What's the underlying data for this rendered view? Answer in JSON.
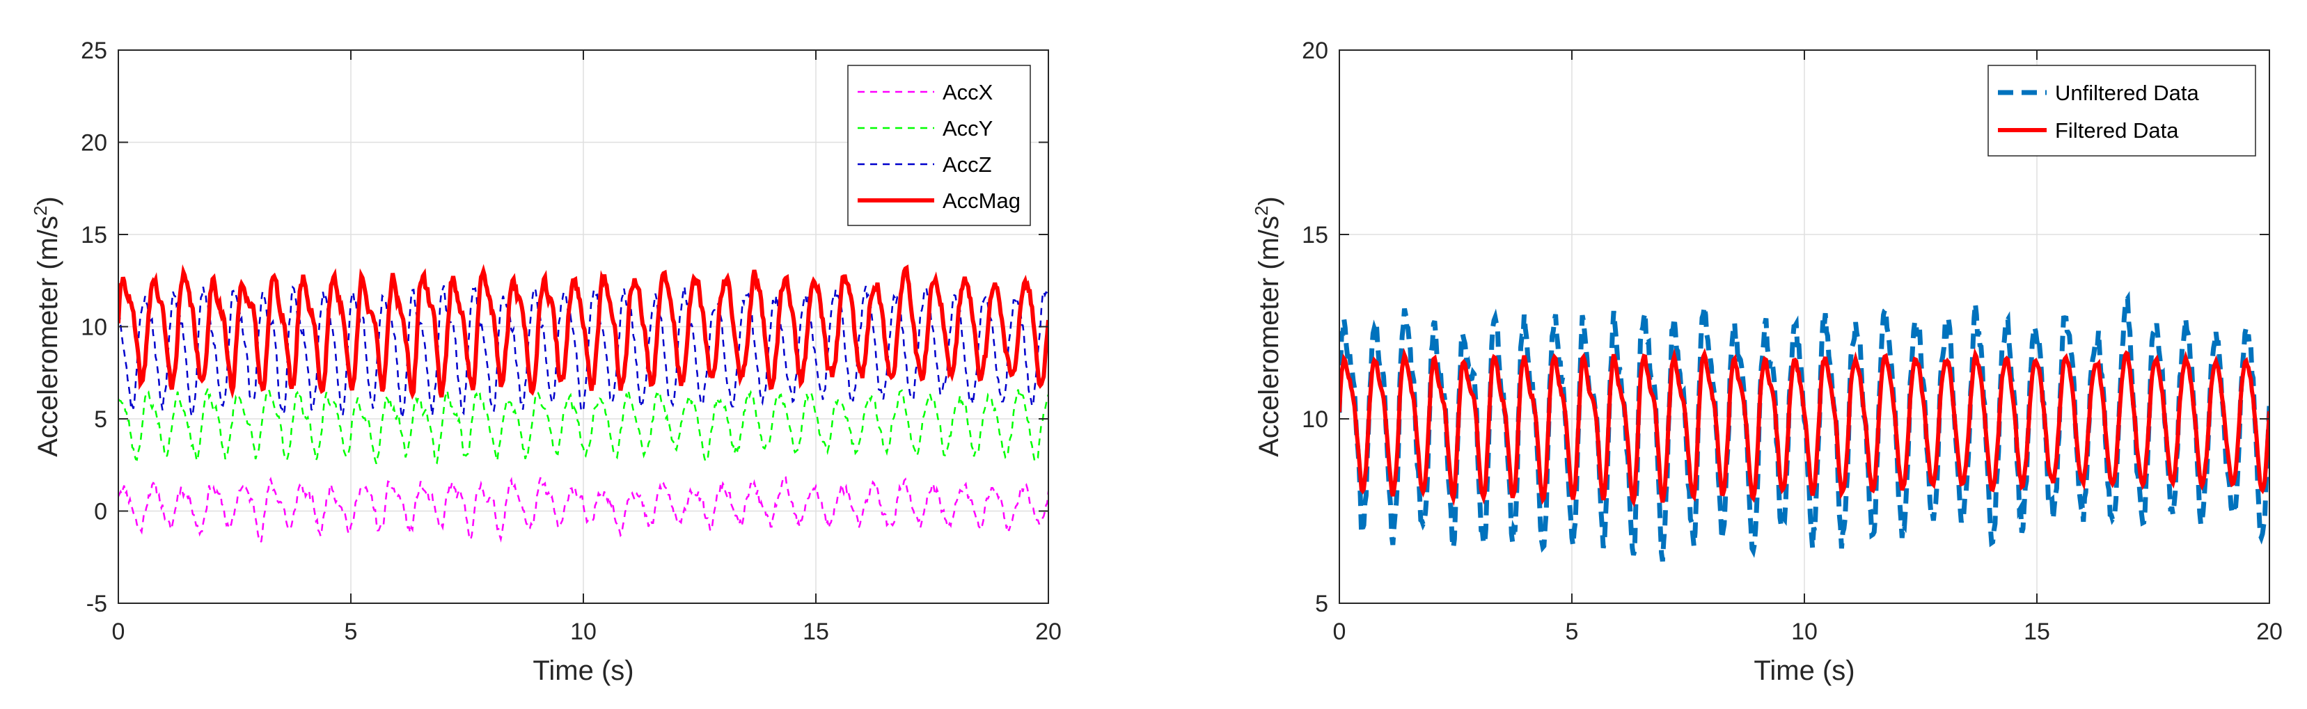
{
  "chart_data": [
    {
      "type": "line",
      "xlabel": "Time (s)",
      "ylabel_main": "Accelerometer (m/s",
      "ylabel_exp": "2",
      "ylabel_close": ")",
      "xlim": [
        0,
        20
      ],
      "ylim": [
        -5,
        25
      ],
      "xticks": [
        0,
        5,
        10,
        15,
        20
      ],
      "yticks": [
        -5,
        0,
        5,
        10,
        15,
        20,
        25
      ],
      "grid": true,
      "legend_position": "top-right",
      "series": [
        {
          "name": "AccX",
          "color": "#ff00ff",
          "style": "dashed",
          "base": 0.3,
          "amp": 1.1,
          "noise": 0.8,
          "freq": 1.55,
          "phase": 0.4,
          "seed": 11
        },
        {
          "name": "AccY",
          "color": "#00ff00",
          "style": "dashed",
          "base": 4.8,
          "amp": 1.5,
          "noise": 0.7,
          "freq": 1.55,
          "phase": 1.2,
          "seed": 23
        },
        {
          "name": "AccZ",
          "color": "#0000cc",
          "style": "dashed",
          "base": 9.0,
          "amp": 2.8,
          "noise": 1.0,
          "freq": 1.55,
          "phase": 2.0,
          "seed": 37
        },
        {
          "name": "AccMag",
          "color": "#ff0000",
          "style": "solid",
          "base": 10.0,
          "amp": 2.7,
          "noise": 0.9,
          "freq": 1.55,
          "phase": 0.0,
          "seed": 41
        }
      ]
    },
    {
      "type": "line",
      "xlabel": "Time (s)",
      "ylabel_main": "Accelerometer (m/s",
      "ylabel_exp": "2",
      "ylabel_close": ")",
      "xlim": [
        0,
        20
      ],
      "ylim": [
        5,
        20
      ],
      "xticks": [
        0,
        5,
        10,
        15,
        20
      ],
      "yticks": [
        5,
        10,
        15,
        20
      ],
      "grid": true,
      "legend_position": "top-right",
      "series": [
        {
          "name": "Unfiltered Data",
          "color": "#0072bd",
          "style": "dashed",
          "base": 10.0,
          "amp": 2.7,
          "noise": 1.0,
          "freq": 1.55,
          "phase": 0.0,
          "seed": 41
        },
        {
          "name": "Filtered Data",
          "color": "#ff0000",
          "style": "solid",
          "base": 10.0,
          "amp": 1.7,
          "noise": 0.25,
          "freq": 1.55,
          "phase": 0.0,
          "seed": 41
        }
      ]
    }
  ]
}
